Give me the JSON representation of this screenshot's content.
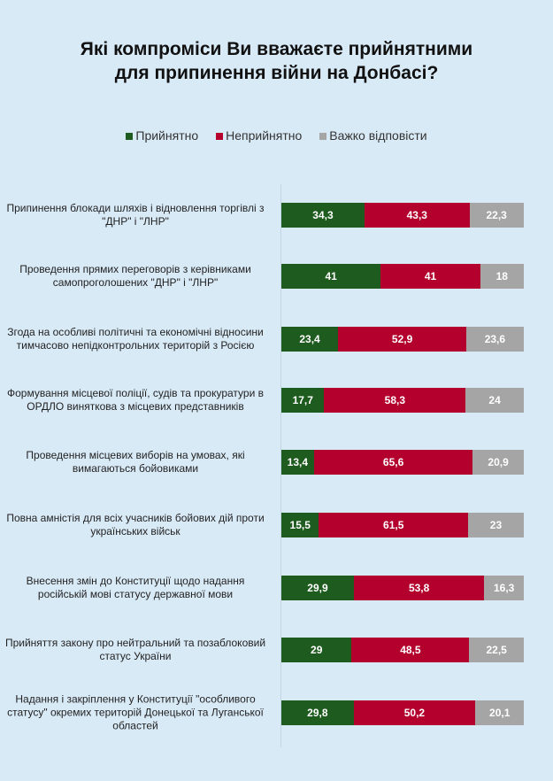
{
  "chart_data": {
    "type": "bar",
    "orientation": "horizontal-stacked",
    "title": "Які компроміси Ви вважаєте прийнятними для припинення війни на Донбасі?",
    "title_lines": [
      "Які компроміси Ви вважаєте прийнятними",
      "для припинення війни на Донбасі?"
    ],
    "legend_position": "top",
    "xlim": [
      0,
      100
    ],
    "categories": [
      "Припинення блокади шляхів і відновлення торгівлі з \"ДНР\" і \"ЛНР\"",
      "Проведення прямих переговорів з керівниками самопроголошених \"ДНР\" і \"ЛНР\"",
      "Згода на особливі політичні та економічні відносини тимчасово непідконтрольних територій з Росією",
      "Формування місцевої поліції, судів та прокуратури в ОРДЛО виняткова з місцевих представників",
      "Проведення місцевих виборів на умовах, які вимагаються бойовиками",
      "Повна амністія для всіх учасників бойових дій проти українських військ",
      "Внесення змін до Конституції щодо надання російській мові статусу державної мови",
      "Прийняття закону про нейтральний та позаблоковий статус України",
      "Надання і закріплення у Конституції \"особливого статусу\" окремих територій Донецької та Луганської областей"
    ],
    "series": [
      {
        "name": "Прийнятно",
        "color": "#1e5b1e",
        "values": [
          34.3,
          41,
          23.4,
          17.7,
          13.4,
          15.5,
          29.9,
          29,
          29.8
        ],
        "labels": [
          "34,3",
          "41",
          "23,4",
          "17,7",
          "13,4",
          "15,5",
          "29,9",
          "29",
          "29,8"
        ]
      },
      {
        "name": "Неприйнятно",
        "color": "#b3002d",
        "values": [
          43.3,
          41,
          52.9,
          58.3,
          65.6,
          61.5,
          53.8,
          48.5,
          50.2
        ],
        "labels": [
          "43,3",
          "41",
          "52,9",
          "58,3",
          "65,6",
          "61,5",
          "53,8",
          "48,5",
          "50,2"
        ]
      },
      {
        "name": "Важко відповісти",
        "color": "#a5a5a5",
        "values": [
          22.3,
          18,
          23.6,
          24,
          20.9,
          23,
          16.3,
          22.5,
          20.1
        ],
        "labels": [
          "22,3",
          "18",
          "23,6",
          "24",
          "20,9",
          "23",
          "16,3",
          "22,5",
          "20,1"
        ]
      }
    ]
  }
}
